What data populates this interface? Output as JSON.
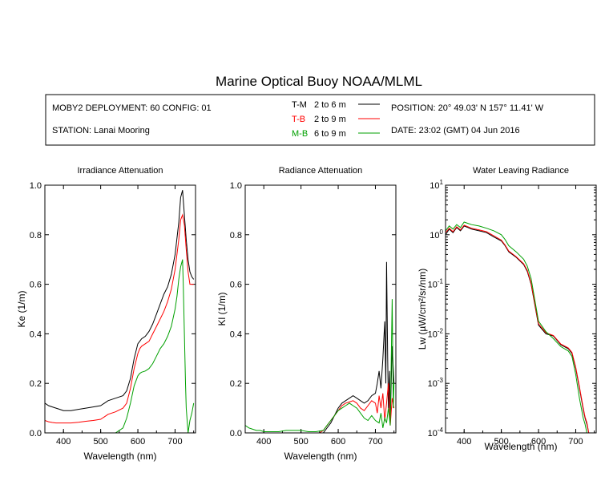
{
  "title": "Marine Optical Buoy NOAA/MLML",
  "info": {
    "deployment": "MOBY2 DEPLOYMENT: 60 CONFIG: 01",
    "station": "STATION: Lanai Mooring",
    "position": "POSITION: 20° 49.03' N   157° 11.41' W",
    "date": "DATE: 23:02 (GMT) 04 Jun 2016"
  },
  "legend": [
    {
      "code": "T-M",
      "range": "2 to 6  m",
      "color": "#000000"
    },
    {
      "code": "T-B",
      "range": "2 to 9  m",
      "color": "#ff0000"
    },
    {
      "code": "M-B",
      "range": "6 to 9  m",
      "color": "#00a000"
    }
  ],
  "chart_data": [
    {
      "type": "line",
      "title": "Irradiance Attenuation",
      "xlabel": "Wavelength (nm)",
      "ylabel": "Ke  (1/m)",
      "xlim": [
        350,
        755
      ],
      "ylim": [
        0,
        1.0
      ],
      "xticks": [
        "400",
        "500",
        "600",
        "700"
      ],
      "xtick_values": [
        400,
        500,
        600,
        700
      ],
      "yticks": [
        "0.0",
        "0.2",
        "0.4",
        "0.6",
        "0.8",
        "1.0"
      ],
      "ytick_values": [
        0,
        0.2,
        0.4,
        0.6,
        0.8,
        1.0
      ],
      "series": [
        {
          "name": "T-M",
          "color": "#000000",
          "x": [
            350,
            360,
            370,
            380,
            390,
            400,
            420,
            440,
            460,
            480,
            500,
            510,
            520,
            540,
            560,
            570,
            580,
            590,
            600,
            605,
            610,
            620,
            630,
            640,
            650,
            660,
            670,
            680,
            690,
            700,
            710,
            715,
            720,
            725,
            730,
            735,
            740,
            745,
            750
          ],
          "y": [
            0.12,
            0.11,
            0.105,
            0.1,
            0.095,
            0.09,
            0.09,
            0.095,
            0.1,
            0.105,
            0.11,
            0.12,
            0.13,
            0.14,
            0.15,
            0.17,
            0.22,
            0.3,
            0.36,
            0.37,
            0.38,
            0.39,
            0.41,
            0.44,
            0.48,
            0.52,
            0.56,
            0.59,
            0.64,
            0.72,
            0.85,
            0.95,
            0.98,
            0.88,
            0.78,
            0.7,
            0.65,
            0.63,
            0.62
          ]
        },
        {
          "name": "T-B",
          "color": "#ff0000",
          "x": [
            350,
            360,
            370,
            380,
            390,
            400,
            420,
            440,
            460,
            480,
            500,
            510,
            520,
            540,
            560,
            570,
            580,
            590,
            600,
            605,
            610,
            620,
            630,
            640,
            650,
            660,
            670,
            680,
            690,
            700,
            710,
            715,
            720,
            725,
            730,
            735,
            740,
            745,
            750
          ],
          "y": [
            0.05,
            0.045,
            0.042,
            0.04,
            0.04,
            0.04,
            0.04,
            0.043,
            0.047,
            0.05,
            0.055,
            0.065,
            0.075,
            0.085,
            0.1,
            0.12,
            0.18,
            0.26,
            0.32,
            0.34,
            0.35,
            0.36,
            0.37,
            0.4,
            0.43,
            0.46,
            0.49,
            0.53,
            0.58,
            0.66,
            0.78,
            0.86,
            0.88,
            0.84,
            0.74,
            0.65,
            0.6,
            0.6,
            0.6
          ]
        },
        {
          "name": "M-B",
          "color": "#00a000",
          "x": [
            520,
            540,
            560,
            570,
            580,
            590,
            600,
            605,
            610,
            620,
            630,
            640,
            650,
            660,
            670,
            680,
            690,
            700,
            705,
            710,
            715,
            720,
            722,
            725,
            728,
            730,
            735,
            740,
            745,
            750
          ],
          "y": [
            0.0,
            0.0,
            0.02,
            0.06,
            0.12,
            0.19,
            0.23,
            0.24,
            0.245,
            0.25,
            0.26,
            0.28,
            0.31,
            0.34,
            0.36,
            0.39,
            0.43,
            0.5,
            0.55,
            0.62,
            0.67,
            0.7,
            0.6,
            0.4,
            0.2,
            0.1,
            0.0,
            0.05,
            0.08,
            0.12
          ]
        }
      ]
    },
    {
      "type": "line",
      "title": "Radiance Attenuation",
      "xlabel": "Wavelength (nm)",
      "ylabel": "Kl  (1/m)",
      "xlim": [
        350,
        755
      ],
      "ylim": [
        0,
        1.0
      ],
      "xticks": [
        "400",
        "500",
        "600",
        "700"
      ],
      "xtick_values": [
        400,
        500,
        600,
        700
      ],
      "yticks": [
        "0.0",
        "0.2",
        "0.4",
        "0.6",
        "0.8",
        "1.0"
      ],
      "ytick_values": [
        0,
        0.2,
        0.4,
        0.6,
        0.8,
        1.0
      ],
      "series": [
        {
          "name": "T-M",
          "color": "#000000",
          "x": [
            560,
            570,
            580,
            590,
            600,
            610,
            620,
            630,
            640,
            650,
            660,
            670,
            680,
            690,
            700,
            705,
            710,
            715,
            720,
            725,
            728,
            730,
            733,
            735,
            738,
            740,
            745,
            750
          ],
          "y": [
            0.0,
            0.02,
            0.04,
            0.07,
            0.1,
            0.12,
            0.13,
            0.14,
            0.15,
            0.14,
            0.13,
            0.12,
            0.13,
            0.15,
            0.16,
            0.2,
            0.25,
            0.18,
            0.3,
            0.45,
            0.2,
            0.69,
            0.3,
            0.1,
            0.25,
            0.05,
            0.35,
            0.2
          ]
        },
        {
          "name": "T-B",
          "color": "#ff0000",
          "x": [
            550,
            560,
            570,
            580,
            590,
            600,
            610,
            620,
            630,
            640,
            650,
            660,
            670,
            680,
            690,
            700,
            705,
            710,
            715,
            720,
            725,
            730,
            735,
            740,
            745,
            750
          ],
          "y": [
            0.0,
            0.01,
            0.03,
            0.05,
            0.07,
            0.09,
            0.11,
            0.12,
            0.125,
            0.13,
            0.12,
            0.1,
            0.09,
            0.11,
            0.13,
            0.12,
            0.08,
            0.15,
            0.1,
            0.16,
            0.05,
            0.12,
            0.2,
            0.03,
            0.14,
            0.1
          ]
        },
        {
          "name": "M-B",
          "color": "#00a000",
          "x": [
            350,
            360,
            370,
            380,
            390,
            400,
            420,
            440,
            460,
            480,
            500,
            520,
            540,
            560,
            570,
            580,
            590,
            600,
            610,
            620,
            630,
            640,
            650,
            660,
            670,
            680,
            690,
            700,
            710,
            715,
            720,
            725,
            730,
            735,
            740,
            745,
            748,
            750
          ],
          "y": [
            0.03,
            0.02,
            0.015,
            0.01,
            0.01,
            0.005,
            0.005,
            0.005,
            0.01,
            0.01,
            0.01,
            0.005,
            0.005,
            0.01,
            0.03,
            0.05,
            0.07,
            0.09,
            0.1,
            0.11,
            0.12,
            0.11,
            0.1,
            0.08,
            0.06,
            0.05,
            0.07,
            0.05,
            0.04,
            0.08,
            0.02,
            0.06,
            0.04,
            0.1,
            0.03,
            0.54,
            0.1,
            0.2
          ]
        }
      ]
    },
    {
      "type": "line",
      "title": "Water Leaving Radiance",
      "xlabel": "Wavelength (nm)",
      "ylabel": "Lw  (µW/cm²/sr/nm)",
      "xlim": [
        350,
        755
      ],
      "ylim": [
        0.0001,
        10
      ],
      "yscale": "log",
      "xticks": [
        "400",
        "500",
        "600",
        "700"
      ],
      "xtick_values": [
        400,
        500,
        600,
        700
      ],
      "yticks": [
        "10^1",
        "10^0",
        "10^-1",
        "10^-2",
        "10^-3",
        "10^-4"
      ],
      "ytick_values": [
        10,
        1,
        0.1,
        0.01,
        0.001,
        0.0001
      ],
      "series": [
        {
          "name": "T-M",
          "color": "#000000",
          "x": [
            350,
            360,
            370,
            380,
            390,
            400,
            410,
            420,
            440,
            460,
            480,
            500,
            510,
            520,
            540,
            560,
            570,
            580,
            600,
            620,
            640,
            660,
            680,
            690,
            700,
            710,
            720,
            725,
            730,
            735
          ],
          "y": [
            1.0,
            1.3,
            1.1,
            1.4,
            1.2,
            1.5,
            1.4,
            1.3,
            1.2,
            1.1,
            0.9,
            0.75,
            0.6,
            0.45,
            0.35,
            0.25,
            0.18,
            0.1,
            0.015,
            0.01,
            0.009,
            0.006,
            0.005,
            0.004,
            0.002,
            0.0008,
            0.0003,
            0.0002,
            0.00015,
            0.0001
          ]
        },
        {
          "name": "T-B",
          "color": "#ff0000",
          "x": [
            350,
            360,
            370,
            380,
            390,
            400,
            410,
            420,
            440,
            460,
            480,
            500,
            510,
            520,
            540,
            560,
            570,
            580,
            600,
            620,
            640,
            660,
            680,
            690,
            700,
            710,
            720,
            725,
            730,
            735
          ],
          "y": [
            1.1,
            1.35,
            1.15,
            1.45,
            1.25,
            1.55,
            1.45,
            1.35,
            1.25,
            1.15,
            0.95,
            0.78,
            0.62,
            0.47,
            0.36,
            0.26,
            0.19,
            0.105,
            0.016,
            0.0105,
            0.0092,
            0.0062,
            0.0052,
            0.0042,
            0.0021,
            0.00085,
            0.00032,
            0.00021,
            0.00016,
            0.0001
          ]
        },
        {
          "name": "M-B",
          "color": "#00a000",
          "x": [
            350,
            360,
            370,
            380,
            390,
            400,
            410,
            420,
            440,
            460,
            480,
            500,
            510,
            520,
            540,
            560,
            570,
            580,
            600,
            620,
            640,
            660,
            680,
            690,
            700,
            710,
            720,
            725,
            730,
            735
          ],
          "y": [
            1.2,
            1.5,
            1.3,
            1.6,
            1.4,
            1.8,
            1.7,
            1.6,
            1.5,
            1.35,
            1.2,
            1.0,
            0.8,
            0.6,
            0.45,
            0.32,
            0.23,
            0.13,
            0.018,
            0.011,
            0.008,
            0.0055,
            0.0045,
            0.0035,
            0.0015,
            0.0005,
            0.0002,
            0.00015,
            0.0001,
            0.0001
          ]
        }
      ]
    }
  ]
}
